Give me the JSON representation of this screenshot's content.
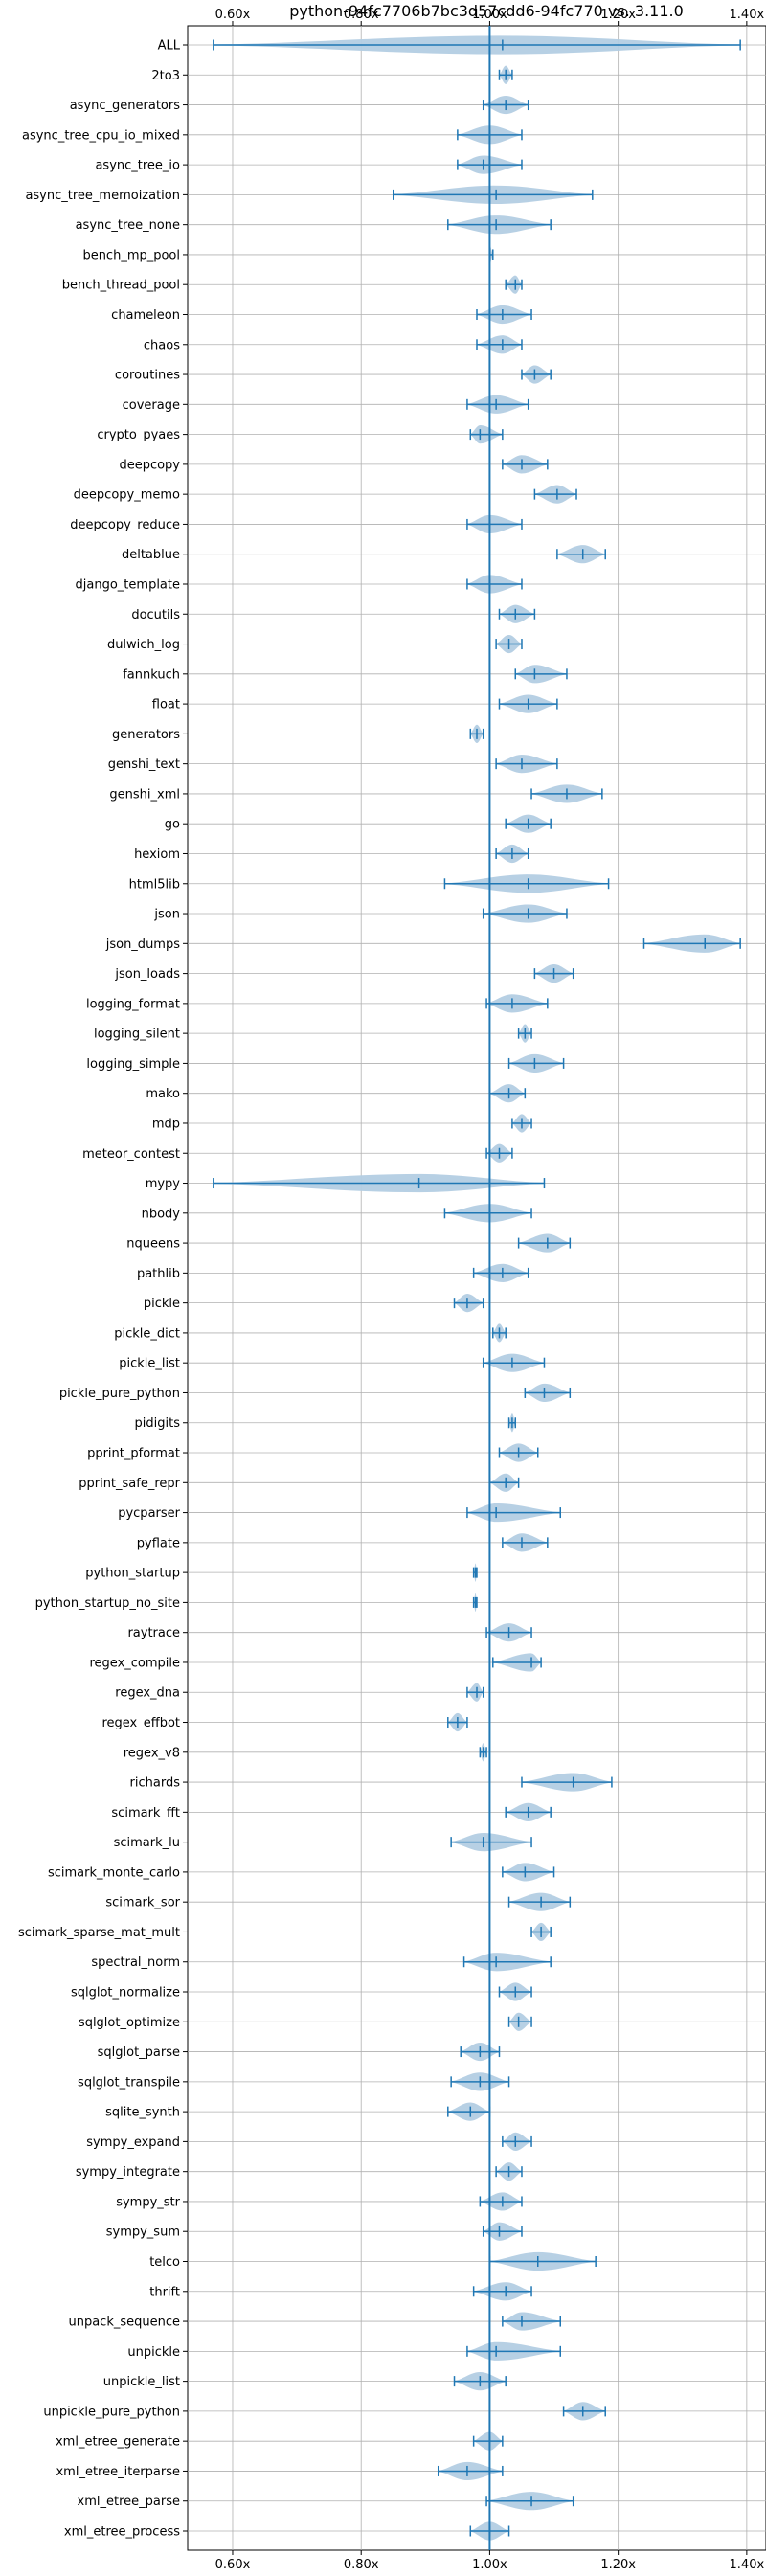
{
  "chart_data": {
    "type": "violin",
    "title": "python-94fc7706b7bc3d57cdd6-94fc770 vs. 3.11.0",
    "xlabel": "",
    "ylabel": "",
    "xlim": [
      0.53,
      1.43
    ],
    "x_ticks": [
      0.6,
      0.8,
      1.0,
      1.2,
      1.4
    ],
    "x_tick_labels": [
      "0.60x",
      "0.80x",
      "1.00x",
      "1.20x",
      "1.40x"
    ],
    "reference_line": 1.0,
    "grid": true,
    "color": "#1f77b4",
    "violin_color": "#b3cde3",
    "benchmarks": [
      {
        "name": "ALL",
        "min": 0.57,
        "median": 1.02,
        "max": 1.39
      },
      {
        "name": "2to3",
        "min": 1.015,
        "median": 1.025,
        "max": 1.035
      },
      {
        "name": "async_generators",
        "min": 0.99,
        "median": 1.025,
        "max": 1.06
      },
      {
        "name": "async_tree_cpu_io_mixed",
        "min": 0.95,
        "median": 1.0,
        "max": 1.05
      },
      {
        "name": "async_tree_io",
        "min": 0.95,
        "median": 0.99,
        "max": 1.05
      },
      {
        "name": "async_tree_memoization",
        "min": 0.85,
        "median": 1.01,
        "max": 1.16
      },
      {
        "name": "async_tree_none",
        "min": 0.935,
        "median": 1.01,
        "max": 1.095
      },
      {
        "name": "bench_mp_pool",
        "min": 1.0,
        "median": 1.0,
        "max": 1.005
      },
      {
        "name": "bench_thread_pool",
        "min": 1.025,
        "median": 1.04,
        "max": 1.05
      },
      {
        "name": "chameleon",
        "min": 0.98,
        "median": 1.02,
        "max": 1.065
      },
      {
        "name": "chaos",
        "min": 0.98,
        "median": 1.02,
        "max": 1.05
      },
      {
        "name": "coroutines",
        "min": 1.05,
        "median": 1.07,
        "max": 1.095
      },
      {
        "name": "coverage",
        "min": 0.965,
        "median": 1.01,
        "max": 1.06
      },
      {
        "name": "crypto_pyaes",
        "min": 0.97,
        "median": 0.985,
        "max": 1.02
      },
      {
        "name": "deepcopy",
        "min": 1.02,
        "median": 1.05,
        "max": 1.09
      },
      {
        "name": "deepcopy_memo",
        "min": 1.07,
        "median": 1.105,
        "max": 1.135
      },
      {
        "name": "deepcopy_reduce",
        "min": 0.965,
        "median": 1.0,
        "max": 1.05
      },
      {
        "name": "deltablue",
        "min": 1.105,
        "median": 1.145,
        "max": 1.18
      },
      {
        "name": "django_template",
        "min": 0.965,
        "median": 1.0,
        "max": 1.05
      },
      {
        "name": "docutils",
        "min": 1.015,
        "median": 1.04,
        "max": 1.07
      },
      {
        "name": "dulwich_log",
        "min": 1.01,
        "median": 1.03,
        "max": 1.05
      },
      {
        "name": "fannkuch",
        "min": 1.04,
        "median": 1.07,
        "max": 1.12
      },
      {
        "name": "float",
        "min": 1.015,
        "median": 1.06,
        "max": 1.105
      },
      {
        "name": "generators",
        "min": 0.97,
        "median": 0.98,
        "max": 0.99
      },
      {
        "name": "genshi_text",
        "min": 1.01,
        "median": 1.05,
        "max": 1.105
      },
      {
        "name": "genshi_xml",
        "min": 1.065,
        "median": 1.12,
        "max": 1.175
      },
      {
        "name": "go",
        "min": 1.025,
        "median": 1.06,
        "max": 1.095
      },
      {
        "name": "hexiom",
        "min": 1.01,
        "median": 1.035,
        "max": 1.06
      },
      {
        "name": "html5lib",
        "min": 0.93,
        "median": 1.06,
        "max": 1.185
      },
      {
        "name": "json",
        "min": 0.99,
        "median": 1.06,
        "max": 1.12
      },
      {
        "name": "json_dumps",
        "min": 1.24,
        "median": 1.335,
        "max": 1.39
      },
      {
        "name": "json_loads",
        "min": 1.07,
        "median": 1.1,
        "max": 1.13
      },
      {
        "name": "logging_format",
        "min": 0.995,
        "median": 1.035,
        "max": 1.09
      },
      {
        "name": "logging_silent",
        "min": 1.045,
        "median": 1.055,
        "max": 1.065
      },
      {
        "name": "logging_simple",
        "min": 1.03,
        "median": 1.07,
        "max": 1.115
      },
      {
        "name": "mako",
        "min": 1.0,
        "median": 1.03,
        "max": 1.055
      },
      {
        "name": "mdp",
        "min": 1.035,
        "median": 1.05,
        "max": 1.065
      },
      {
        "name": "meteor_contest",
        "min": 0.995,
        "median": 1.015,
        "max": 1.035
      },
      {
        "name": "mypy",
        "min": 0.57,
        "median": 0.89,
        "max": 1.085
      },
      {
        "name": "nbody",
        "min": 0.93,
        "median": 1.0,
        "max": 1.065
      },
      {
        "name": "nqueens",
        "min": 1.045,
        "median": 1.09,
        "max": 1.125
      },
      {
        "name": "pathlib",
        "min": 0.975,
        "median": 1.02,
        "max": 1.06
      },
      {
        "name": "pickle",
        "min": 0.945,
        "median": 0.965,
        "max": 0.99
      },
      {
        "name": "pickle_dict",
        "min": 1.005,
        "median": 1.015,
        "max": 1.025
      },
      {
        "name": "pickle_list",
        "min": 0.99,
        "median": 1.035,
        "max": 1.085
      },
      {
        "name": "pickle_pure_python",
        "min": 1.055,
        "median": 1.085,
        "max": 1.125
      },
      {
        "name": "pidigits",
        "min": 1.03,
        "median": 1.035,
        "max": 1.04
      },
      {
        "name": "pprint_pformat",
        "min": 1.015,
        "median": 1.045,
        "max": 1.075
      },
      {
        "name": "pprint_safe_repr",
        "min": 1.0,
        "median": 1.025,
        "max": 1.045
      },
      {
        "name": "pycparser",
        "min": 0.965,
        "median": 1.01,
        "max": 1.11
      },
      {
        "name": "pyflate",
        "min": 1.02,
        "median": 1.05,
        "max": 1.09
      },
      {
        "name": "python_startup",
        "min": 0.975,
        "median": 0.978,
        "max": 0.98
      },
      {
        "name": "python_startup_no_site",
        "min": 0.975,
        "median": 0.978,
        "max": 0.98
      },
      {
        "name": "raytrace",
        "min": 0.995,
        "median": 1.03,
        "max": 1.065
      },
      {
        "name": "regex_compile",
        "min": 1.005,
        "median": 1.065,
        "max": 1.08
      },
      {
        "name": "regex_dna",
        "min": 0.965,
        "median": 0.98,
        "max": 0.99
      },
      {
        "name": "regex_effbot",
        "min": 0.935,
        "median": 0.95,
        "max": 0.965
      },
      {
        "name": "regex_v8",
        "min": 0.985,
        "median": 0.99,
        "max": 0.995
      },
      {
        "name": "richards",
        "min": 1.05,
        "median": 1.13,
        "max": 1.19
      },
      {
        "name": "scimark_fft",
        "min": 1.025,
        "median": 1.06,
        "max": 1.095
      },
      {
        "name": "scimark_lu",
        "min": 0.94,
        "median": 0.99,
        "max": 1.065
      },
      {
        "name": "scimark_monte_carlo",
        "min": 1.02,
        "median": 1.055,
        "max": 1.1
      },
      {
        "name": "scimark_sor",
        "min": 1.03,
        "median": 1.08,
        "max": 1.125
      },
      {
        "name": "scimark_sparse_mat_mult",
        "min": 1.065,
        "median": 1.08,
        "max": 1.095
      },
      {
        "name": "spectral_norm",
        "min": 0.96,
        "median": 1.01,
        "max": 1.095
      },
      {
        "name": "sqlglot_normalize",
        "min": 1.015,
        "median": 1.04,
        "max": 1.065
      },
      {
        "name": "sqlglot_optimize",
        "min": 1.03,
        "median": 1.045,
        "max": 1.065
      },
      {
        "name": "sqlglot_parse",
        "min": 0.955,
        "median": 0.985,
        "max": 1.015
      },
      {
        "name": "sqlglot_transpile",
        "min": 0.94,
        "median": 0.985,
        "max": 1.03
      },
      {
        "name": "sqlite_synth",
        "min": 0.935,
        "median": 0.97,
        "max": 1.0
      },
      {
        "name": "sympy_expand",
        "min": 1.02,
        "median": 1.04,
        "max": 1.065
      },
      {
        "name": "sympy_integrate",
        "min": 1.01,
        "median": 1.03,
        "max": 1.05
      },
      {
        "name": "sympy_str",
        "min": 0.985,
        "median": 1.02,
        "max": 1.05
      },
      {
        "name": "sympy_sum",
        "min": 0.99,
        "median": 1.015,
        "max": 1.05
      },
      {
        "name": "telco",
        "min": 1.0,
        "median": 1.075,
        "max": 1.165
      },
      {
        "name": "thrift",
        "min": 0.975,
        "median": 1.025,
        "max": 1.065
      },
      {
        "name": "unpack_sequence",
        "min": 1.02,
        "median": 1.05,
        "max": 1.11
      },
      {
        "name": "unpickle",
        "min": 0.965,
        "median": 1.01,
        "max": 1.11
      },
      {
        "name": "unpickle_list",
        "min": 0.945,
        "median": 0.985,
        "max": 1.025
      },
      {
        "name": "unpickle_pure_python",
        "min": 1.115,
        "median": 1.145,
        "max": 1.18
      },
      {
        "name": "xml_etree_generate",
        "min": 0.975,
        "median": 1.0,
        "max": 1.02
      },
      {
        "name": "xml_etree_iterparse",
        "min": 0.92,
        "median": 0.965,
        "max": 1.02
      },
      {
        "name": "xml_etree_parse",
        "min": 0.995,
        "median": 1.065,
        "max": 1.13
      },
      {
        "name": "xml_etree_process",
        "min": 0.97,
        "median": 1.0,
        "max": 1.03
      }
    ]
  }
}
